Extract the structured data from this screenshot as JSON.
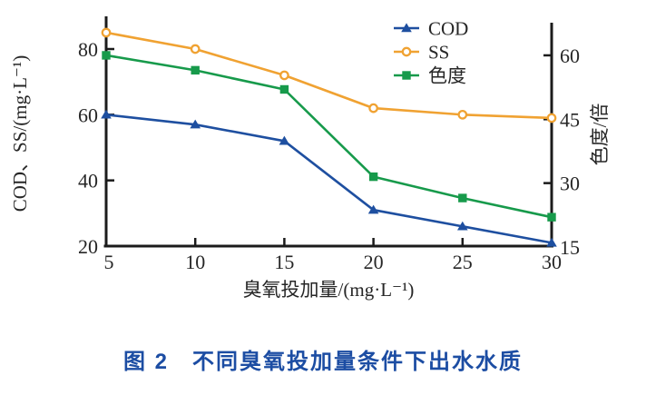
{
  "figure": {
    "caption": "图 2　不同臭氧投加量条件下出水水质",
    "caption_color": "#1c4da3"
  },
  "colors": {
    "cod_blue": "#1e4fa0",
    "ss_orange": "#f0a232",
    "chroma_green": "#179a4b",
    "axis_black": "#1b1b1b",
    "label_text": "#262626",
    "background": "#ffffff"
  },
  "chart_data": {
    "type": "line",
    "title": "",
    "xlabel": "臭氧投加量/(mg·L⁻¹)",
    "ylabel_left": "COD、SS/(mg·L⁻¹)",
    "ylabel_right": "色度/倍",
    "x": [
      5,
      10,
      15,
      20,
      25,
      30
    ],
    "x_ticks": [
      5,
      10,
      15,
      20,
      25,
      30
    ],
    "left_axis": {
      "ticks": [
        20,
        40,
        60,
        80
      ],
      "range": [
        20,
        90
      ]
    },
    "right_axis": {
      "ticks": [
        15,
        30,
        45,
        60
      ],
      "range": [
        15,
        68
      ]
    },
    "grid": false,
    "legend_position": "upper-center-inside",
    "series": [
      {
        "id": "cod",
        "name": "COD",
        "axis": "left",
        "marker": "triangle-filled",
        "color": "#1e4fa0",
        "values": [
          60,
          57,
          52,
          31,
          26,
          21
        ]
      },
      {
        "id": "ss",
        "name": "SS",
        "axis": "left",
        "marker": "circle-open",
        "color": "#f0a232",
        "values": [
          85,
          80,
          72,
          62,
          60,
          59
        ]
      },
      {
        "id": "chroma",
        "name": "色度",
        "axis": "right",
        "marker": "square-filled",
        "color": "#179a4b",
        "values": [
          60,
          56.5,
          52,
          31.5,
          26.5,
          22
        ]
      }
    ]
  }
}
